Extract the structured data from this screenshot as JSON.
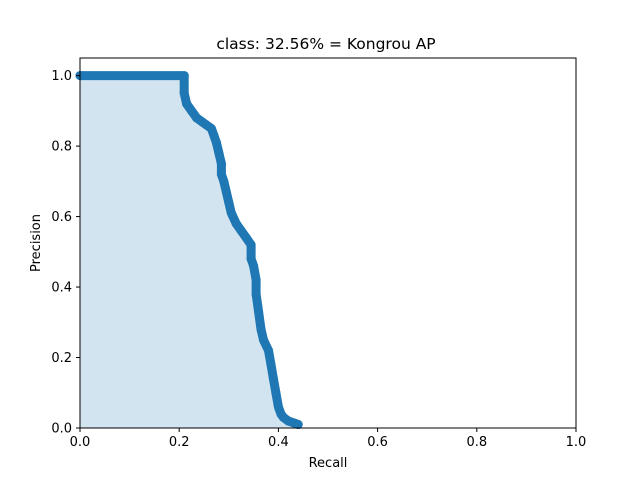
{
  "chart_data": {
    "type": "area",
    "title": "class: 32.56% = Kongrou AP",
    "xlabel": "Recall",
    "ylabel": "Precision",
    "xlim": [
      0,
      1
    ],
    "ylim": [
      0,
      1.05
    ],
    "xticks": [
      0.0,
      0.2,
      0.4,
      0.6,
      0.8,
      1.0
    ],
    "yticks": [
      0.0,
      0.2,
      0.4,
      0.6,
      0.8,
      1.0
    ],
    "xtick_labels": [
      "0.0",
      "0.2",
      "0.4",
      "0.6",
      "0.8",
      "1.0"
    ],
    "ytick_labels": [
      "0.0",
      "0.2",
      "0.4",
      "0.6",
      "0.8",
      "1.0"
    ],
    "grid": false,
    "colors": {
      "line": "#1f77b4",
      "fill": "#1f77b4",
      "fill_alpha": 0.2
    },
    "series": [
      {
        "recall": [
          0.0,
          0.21,
          0.21,
          0.215,
          0.225,
          0.235,
          0.245,
          0.255,
          0.265,
          0.27,
          0.275,
          0.28,
          0.285,
          0.285,
          0.29,
          0.295,
          0.3,
          0.305,
          0.315,
          0.325,
          0.335,
          0.345,
          0.345,
          0.35,
          0.355,
          0.355,
          0.36,
          0.365,
          0.37,
          0.38,
          0.385,
          0.39,
          0.395,
          0.4,
          0.405,
          0.41,
          0.42,
          0.43,
          0.44
        ],
        "precision": [
          1.0,
          1.0,
          0.95,
          0.92,
          0.9,
          0.88,
          0.87,
          0.86,
          0.85,
          0.83,
          0.81,
          0.78,
          0.75,
          0.72,
          0.7,
          0.67,
          0.64,
          0.61,
          0.58,
          0.56,
          0.54,
          0.52,
          0.48,
          0.46,
          0.42,
          0.38,
          0.33,
          0.28,
          0.25,
          0.22,
          0.18,
          0.14,
          0.1,
          0.06,
          0.04,
          0.03,
          0.02,
          0.015,
          0.01
        ]
      }
    ]
  }
}
